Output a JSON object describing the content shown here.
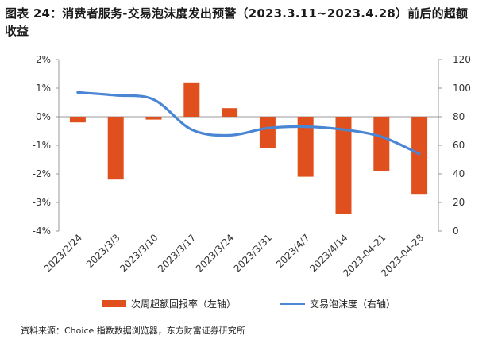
{
  "figure": {
    "title_line1": "图表 24：消费者服务-交易泡沫度发出预警（2023.3.11~2023.4.28）前后的超额",
    "title_line2": "收益",
    "source": "资料来源：Choice 指数数据浏览器，东方财富证券研究所"
  },
  "colors": {
    "bar": "#e0501e",
    "line": "#4a86d4",
    "axis": "#999999"
  },
  "chart_data": {
    "type": "bar+line",
    "categories": [
      "2023/2/24",
      "2023/3/3",
      "2023/3/10",
      "2023/3/17",
      "2023/3/24",
      "2023/3/31",
      "2023/4/7",
      "2023/4/14",
      "2023-04-21",
      "2023-04-28"
    ],
    "series": [
      {
        "name": "次周超额回报率（左轴）",
        "type": "bar",
        "axis": "left",
        "values": [
          -0.2,
          -2.2,
          -0.1,
          1.2,
          0.3,
          -1.1,
          -2.1,
          -3.4,
          -1.9,
          -2.7
        ]
      },
      {
        "name": "交易泡沫度（右轴）",
        "type": "line",
        "axis": "right",
        "values": [
          97,
          95,
          92,
          71,
          67,
          72,
          73,
          71,
          66,
          54
        ]
      }
    ],
    "left_axis": {
      "ylim": [
        -4,
        2
      ],
      "ticks": [
        "2%",
        "1%",
        "0%",
        "-1%",
        "-2%",
        "-3%",
        "-4%"
      ],
      "tick_values": [
        2,
        1,
        0,
        -1,
        -2,
        -3,
        -4
      ]
    },
    "right_axis": {
      "ylim": [
        0,
        120
      ],
      "ticks": [
        "120",
        "100",
        "80",
        "60",
        "40",
        "20",
        "0"
      ],
      "tick_values": [
        120,
        100,
        80,
        60,
        40,
        20,
        0
      ]
    },
    "legend_position": "bottom"
  }
}
